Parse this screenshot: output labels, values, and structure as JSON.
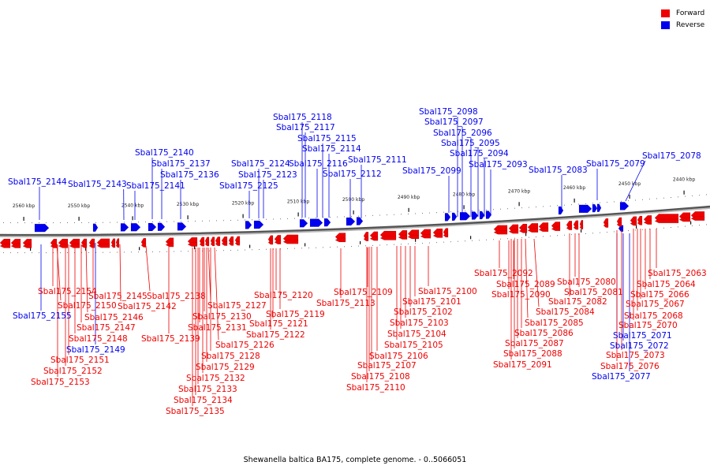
{
  "legend": {
    "forward_label": "Forward",
    "forward_color": "#ee0000",
    "reverse_label": "Reverse",
    "reverse_color": "#0000ee"
  },
  "caption": "Shewanella baltica BA175, complete genome. - 0..5066051",
  "scale_ticks": [
    "2560 kbp",
    "2550 kbp",
    "2540 kbp",
    "2530 kbp",
    "2520 kbp",
    "2510 kbp",
    "2500 kbp",
    "2490 kbp",
    "2480 kbp",
    "2470 kbp",
    "2460 kbp",
    "2450 kbp",
    "2440 kbp"
  ],
  "reverse_genes": [
    "Sbal175_2078",
    "Sbal175_2079",
    "Sbal175_2083",
    "Sbal175_2093",
    "Sbal175_2094",
    "Sbal175_2095",
    "Sbal175_2096",
    "Sbal175_2097",
    "Sbal175_2098",
    "Sbal175_2099",
    "Sbal175_2111",
    "Sbal175_2112",
    "Sbal175_2114",
    "Sbal175_2115",
    "Sbal175_2116",
    "Sbal175_2117",
    "Sbal175_2118",
    "Sbal175_2123",
    "Sbal175_2124",
    "Sbal175_2125",
    "Sbal175_2136",
    "Sbal175_2137",
    "Sbal175_2140",
    "Sbal175_2141",
    "Sbal175_2143",
    "Sbal175_2144",
    "Sbal175_2149",
    "Sbal175_2155",
    "Sbal175_2071",
    "Sbal175_2072",
    "Sbal175_2077"
  ],
  "forward_genes": [
    "Sbal175_2154",
    "Sbal175_2150",
    "Sbal175_2145",
    "Sbal175_2142",
    "Sbal175_2138",
    "Sbal175_2146",
    "Sbal175_2147",
    "Sbal175_2148",
    "Sbal175_2151",
    "Sbal175_2152",
    "Sbal175_2153",
    "Sbal175_2139",
    "Sbal175_2127",
    "Sbal175_2130",
    "Sbal175_2131",
    "Sbal175_2126",
    "Sbal175_2128",
    "Sbal175_2129",
    "Sbal175_2132",
    "Sbal175_2133",
    "Sbal175_2134",
    "Sbal175_2135",
    "Sbal175_2120",
    "Sbal175_2119",
    "Sbal175_2121",
    "Sbal175_2122",
    "Sbal175_2113",
    "Sbal175_2109",
    "Sbal175_2101",
    "Sbal175_2102",
    "Sbal175_2103",
    "Sbal175_2104",
    "Sbal175_2105",
    "Sbal175_2106",
    "Sbal175_2107",
    "Sbal175_2108",
    "Sbal175_2110",
    "Sbal175_2100",
    "Sbal175_2092",
    "Sbal175_2089",
    "Sbal175_2090",
    "Sbal175_2084",
    "Sbal175_2085",
    "Sbal175_2086",
    "Sbal175_2087",
    "Sbal175_2088",
    "Sbal175_2091",
    "Sbal175_2080",
    "Sbal175_2081",
    "Sbal175_2082",
    "Sbal175_2063",
    "Sbal175_2064",
    "Sbal175_2066",
    "Sbal175_2067",
    "Sbal175_2068",
    "Sbal175_2070",
    "Sbal175_2073",
    "Sbal175_2076"
  ]
}
